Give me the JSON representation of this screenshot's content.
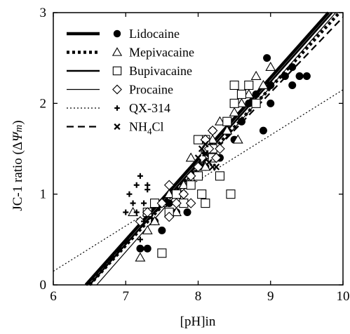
{
  "chart_data": {
    "type": "scatter",
    "xlabel": "[pH]in",
    "ylabel_parts": {
      "prefix": "JC-1 ratio (Δ",
      "psi": "Ψ",
      "m": "m",
      "suffix": ")"
    },
    "xlim": [
      6,
      10
    ],
    "ylim": [
      0,
      3
    ],
    "xticks": [
      6,
      7,
      8,
      9,
      10
    ],
    "yticks": [
      0,
      1,
      2,
      3
    ],
    "legend_position": "top-left",
    "series": [
      {
        "name": "Lidocaine",
        "marker": "filled-circle",
        "line": "thick-solid",
        "fit": [
          6.45,
          0.0,
          9.8,
          3.0
        ],
        "points": [
          [
            7.2,
            0.4
          ],
          [
            7.3,
            0.4
          ],
          [
            7.4,
            0.7
          ],
          [
            7.5,
            0.6
          ],
          [
            7.6,
            0.9
          ],
          [
            7.7,
            0.8
          ],
          [
            7.8,
            1.0
          ],
          [
            7.85,
            0.8
          ],
          [
            7.9,
            1.1
          ],
          [
            8.0,
            1.2
          ],
          [
            8.1,
            1.3
          ],
          [
            8.2,
            1.5
          ],
          [
            8.2,
            1.7
          ],
          [
            8.3,
            1.4
          ],
          [
            8.4,
            1.7
          ],
          [
            8.5,
            1.6
          ],
          [
            8.6,
            1.8
          ],
          [
            8.7,
            2.0
          ],
          [
            8.8,
            2.1
          ],
          [
            8.9,
            1.7
          ],
          [
            8.95,
            2.5
          ],
          [
            9.0,
            2.2
          ],
          [
            9.0,
            2.0
          ],
          [
            9.2,
            2.3
          ],
          [
            9.3,
            2.4
          ],
          [
            9.3,
            2.2
          ],
          [
            9.4,
            2.3
          ],
          [
            9.5,
            2.3
          ]
        ]
      },
      {
        "name": "Mepivacaine",
        "marker": "open-triangle",
        "line": "heavy-dotted",
        "fit": [
          6.5,
          0.0,
          9.95,
          3.0
        ],
        "points": [
          [
            7.1,
            0.8
          ],
          [
            7.2,
            0.3
          ],
          [
            7.3,
            0.6
          ],
          [
            7.4,
            0.7
          ],
          [
            7.5,
            0.9
          ],
          [
            7.6,
            1.0
          ],
          [
            7.7,
            0.8
          ],
          [
            7.8,
            1.1
          ],
          [
            7.9,
            1.4
          ],
          [
            8.0,
            1.3
          ],
          [
            8.1,
            1.5
          ],
          [
            8.2,
            1.6
          ],
          [
            8.3,
            1.8
          ],
          [
            8.4,
            1.7
          ],
          [
            8.5,
            1.9
          ],
          [
            8.6,
            2.0
          ],
          [
            8.7,
            2.1
          ],
          [
            8.8,
            2.3
          ],
          [
            8.9,
            2.2
          ],
          [
            9.0,
            2.4
          ],
          [
            8.55,
            1.6
          ],
          [
            8.1,
            1.3
          ]
        ]
      },
      {
        "name": "Bupivacaine",
        "marker": "open-square",
        "line": "solid",
        "fit": [
          6.5,
          0.0,
          9.85,
          3.0
        ],
        "points": [
          [
            7.3,
            0.8
          ],
          [
            7.4,
            0.9
          ],
          [
            7.5,
            0.35
          ],
          [
            7.6,
            0.8
          ],
          [
            7.7,
            1.0
          ],
          [
            7.8,
            0.9
          ],
          [
            7.9,
            1.1
          ],
          [
            8.0,
            1.2
          ],
          [
            8.05,
            1.0
          ],
          [
            8.1,
            0.9
          ],
          [
            8.1,
            1.6
          ],
          [
            8.2,
            1.5
          ],
          [
            8.3,
            1.2
          ],
          [
            8.4,
            1.8
          ],
          [
            8.5,
            2.0
          ],
          [
            8.6,
            2.1
          ],
          [
            8.7,
            2.2
          ],
          [
            8.8,
            2.0
          ],
          [
            8.5,
            2.2
          ],
          [
            8.2,
            1.4
          ],
          [
            8.0,
            1.6
          ],
          [
            8.45,
            1.0
          ]
        ]
      },
      {
        "name": "Procaine",
        "marker": "open-diamond",
        "line": "thin-solid",
        "fit": [
          6.6,
          0.0,
          9.9,
          3.0
        ],
        "points": [
          [
            7.2,
            0.7
          ],
          [
            7.3,
            0.8
          ],
          [
            7.5,
            0.9
          ],
          [
            7.6,
            0.75
          ],
          [
            7.7,
            0.9
          ],
          [
            7.8,
            1.0
          ],
          [
            7.9,
            1.2
          ],
          [
            8.0,
            1.3
          ],
          [
            8.05,
            1.4
          ],
          [
            8.1,
            1.6
          ],
          [
            8.15,
            1.5
          ],
          [
            8.2,
            1.7
          ],
          [
            8.25,
            1.4
          ],
          [
            8.3,
            1.5
          ],
          [
            7.9,
            0.9
          ],
          [
            7.6,
            1.1
          ]
        ]
      },
      {
        "name": "QX-314",
        "marker": "plus",
        "line": "dotted",
        "fit": [
          6.0,
          0.15,
          10.0,
          2.15
        ],
        "points": [
          [
            7.0,
            0.8
          ],
          [
            7.05,
            1.0
          ],
          [
            7.1,
            0.9
          ],
          [
            7.15,
            0.8
          ],
          [
            7.2,
            1.2
          ],
          [
            7.2,
            0.5
          ],
          [
            7.25,
            0.9
          ],
          [
            7.3,
            1.05
          ],
          [
            7.2,
            0.4
          ],
          [
            7.15,
            1.1
          ],
          [
            7.3,
            1.1
          ],
          [
            7.25,
            0.7
          ]
        ]
      },
      {
        "name": "NH4Cl",
        "marker": "cross",
        "line": "dashed",
        "fit": [
          6.45,
          0.0,
          10.0,
          2.95
        ],
        "points": [
          [
            8.0,
            1.4
          ],
          [
            8.05,
            1.5
          ],
          [
            8.1,
            1.45
          ],
          [
            8.15,
            1.35
          ],
          [
            8.2,
            1.3
          ],
          [
            8.25,
            1.3
          ],
          [
            8.1,
            1.55
          ]
        ]
      }
    ]
  }
}
